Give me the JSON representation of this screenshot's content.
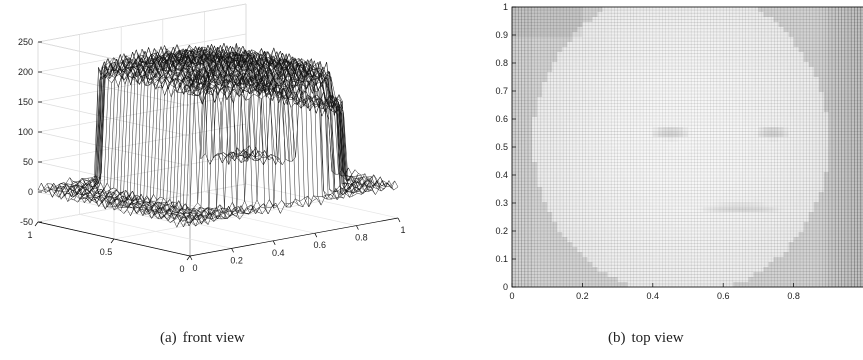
{
  "figure": {
    "subfigures": [
      {
        "label": "(a)",
        "caption": "front view"
      },
      {
        "label": "(b)",
        "caption": "top view"
      }
    ]
  },
  "chart_data": [
    {
      "type": "surface",
      "view": "3d-front",
      "title": "",
      "xlabel": "",
      "ylabel": "",
      "zlabel": "",
      "xlim": [
        0,
        1
      ],
      "ylim": [
        0,
        1
      ],
      "zlim": [
        -50,
        250
      ],
      "xticks": [
        0,
        0.2,
        0.4,
        0.6,
        0.8,
        1
      ],
      "yticks": [
        0,
        0.5,
        1
      ],
      "zticks": [
        -50,
        0,
        50,
        100,
        150,
        200,
        250
      ],
      "grid": true,
      "mesh_color": "#000000",
      "surface_levels": {
        "background_noise": 10,
        "face_plateau_min": 100,
        "face_plateau_max": 230
      }
    },
    {
      "type": "heatmap",
      "view": "top",
      "title": "",
      "xlabel": "",
      "ylabel": "",
      "xlim": [
        0,
        1
      ],
      "ylim": [
        0,
        1
      ],
      "xticks": [
        0,
        0.2,
        0.4,
        0.6,
        0.8
      ],
      "yticks": [
        0,
        0.1,
        0.2,
        0.3,
        0.4,
        0.5,
        0.6,
        0.7,
        0.8,
        0.9,
        1
      ],
      "grid": true,
      "colormap": "grayscale"
    }
  ]
}
